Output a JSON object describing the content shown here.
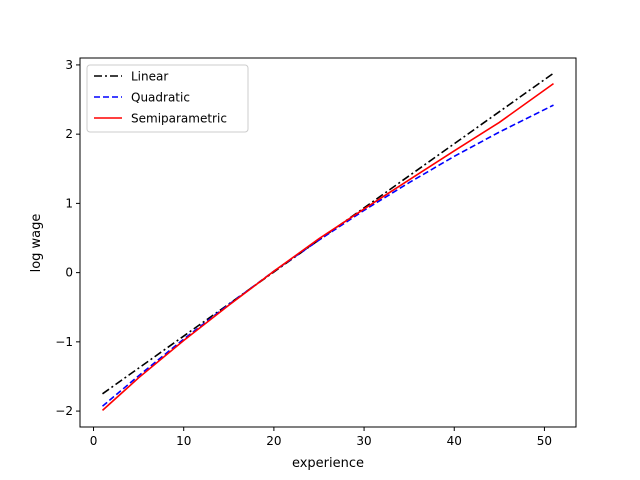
{
  "chart_data": {
    "type": "line",
    "title": "",
    "xlabel": "experience",
    "ylabel": "log wage",
    "xlim": [
      -1.5,
      53.5
    ],
    "ylim": [
      -2.23,
      3.1
    ],
    "xticks": [
      0,
      10,
      20,
      30,
      40,
      50
    ],
    "yticks": [
      -2,
      -1,
      0,
      1,
      2,
      3
    ],
    "grid": false,
    "legend_position": "top-left",
    "series": [
      {
        "name": "Linear",
        "color": "#000000",
        "style": "dashdot",
        "x": [
          1,
          51
        ],
        "y": [
          -1.75,
          2.88
        ]
      },
      {
        "name": "Quadratic",
        "color": "#0000ff",
        "style": "dashed",
        "x": [
          1,
          5,
          10,
          15,
          20,
          25,
          30,
          35,
          40,
          45,
          51
        ],
        "y": [
          -1.93,
          -1.49,
          -0.96,
          -0.46,
          0.02,
          0.47,
          0.9,
          1.3,
          1.68,
          2.03,
          2.42
        ]
      },
      {
        "name": "Semiparametric",
        "color": "#ff0000",
        "style": "solid",
        "x": [
          1,
          5,
          10,
          15,
          20,
          25,
          30,
          35,
          40,
          45,
          51
        ],
        "y": [
          -1.99,
          -1.52,
          -0.98,
          -0.47,
          0.02,
          0.49,
          0.92,
          1.34,
          1.76,
          2.17,
          2.73
        ]
      }
    ]
  }
}
